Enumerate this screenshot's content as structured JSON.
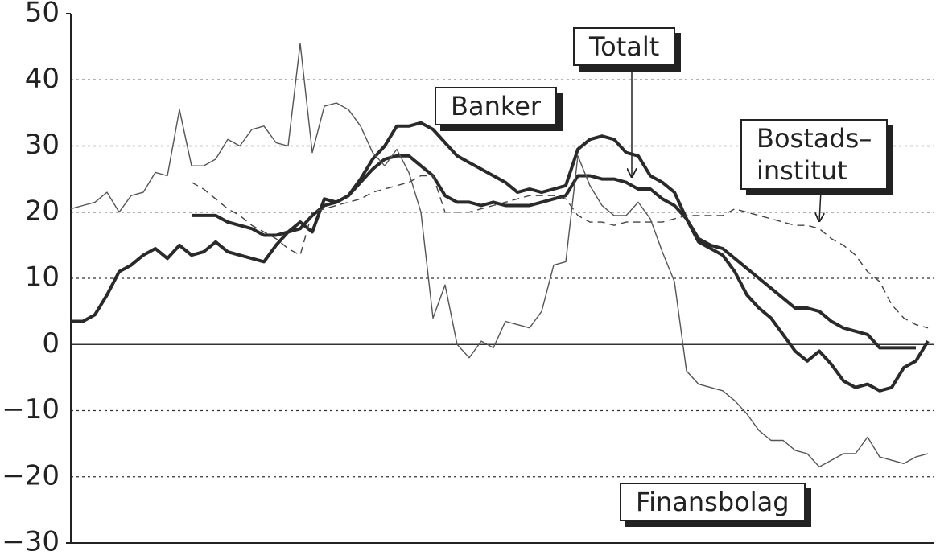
{
  "chart_data": {
    "type": "line",
    "categories": [
      null,
      null,
      null,
      null,
      null,
      null,
      null,
      null,
      null,
      null,
      null,
      null,
      null,
      null,
      null,
      null,
      null,
      null,
      null,
      null,
      null,
      null,
      null,
      null,
      null,
      null,
      null,
      null,
      null,
      null,
      null,
      null,
      null,
      null,
      null,
      null,
      null,
      null,
      null,
      null,
      null,
      null,
      null,
      null,
      null,
      null,
      null,
      null,
      null,
      null,
      null,
      null,
      null,
      null,
      null,
      null,
      null,
      null,
      null,
      null,
      null,
      null,
      null,
      null,
      null,
      null,
      null,
      null,
      null,
      null,
      null,
      null
    ],
    "ylim": [
      -30,
      50
    ],
    "yticks": [
      {
        "value": -30,
        "label": "−30"
      },
      {
        "value": -20,
        "label": "−20"
      },
      {
        "value": -10,
        "label": "−10"
      },
      0,
      10,
      20,
      30,
      40,
      50
    ],
    "grid": true,
    "series": [
      {
        "name": "Banker",
        "color": "#2a2a2a",
        "line_style": "thick",
        "values": [
          3.5,
          3.5,
          4.5,
          7.5,
          11,
          12,
          13.5,
          14.5,
          13,
          15,
          13.5,
          14,
          15.5,
          14,
          13.5,
          13,
          12.5,
          15,
          17,
          18.5,
          17,
          22,
          21.5,
          22.5,
          25,
          28,
          30,
          33,
          33,
          33.5,
          32.5,
          30.5,
          28.5,
          27.5,
          26.5,
          25.5,
          24.5,
          23,
          23.5,
          23,
          23.5,
          24,
          29.5,
          31,
          31.5,
          31,
          29,
          28.5,
          25.5,
          24.5,
          23,
          19,
          15.5,
          14.5,
          13.5,
          11,
          7.5,
          5.5,
          4,
          1.5,
          -1,
          -2.5,
          -1,
          -3,
          -5.5,
          -6.5,
          -6,
          -7,
          -6.5,
          -3.5,
          -2.5,
          0.5
        ]
      },
      {
        "name": "Totalt",
        "color": "#2a2a2a",
        "line_style": "thick",
        "values": [
          null,
          null,
          null,
          null,
          null,
          null,
          null,
          null,
          null,
          null,
          19.5,
          19.5,
          19.5,
          18.5,
          18,
          17.5,
          16.5,
          16.5,
          17,
          17.5,
          19.5,
          21,
          21.5,
          22.5,
          24.5,
          26.5,
          28,
          28.5,
          28.5,
          27,
          25.5,
          22.5,
          21.5,
          21.5,
          21,
          21.5,
          21,
          21,
          21,
          21.5,
          22,
          22.5,
          25.5,
          25.5,
          25,
          25,
          24.5,
          23.5,
          23.5,
          22,
          21,
          19,
          16,
          15,
          14.5,
          13,
          11.5,
          10,
          8.5,
          7,
          5.5,
          5.5,
          5,
          3.5,
          2.5,
          2,
          1.5,
          -0.5,
          -0.5,
          -0.5,
          -0.5,
          null
        ]
      },
      {
        "name": "Bostads–\ninstitut",
        "color": "#444444",
        "line_style": "dashed",
        "values": [
          null,
          null,
          null,
          null,
          null,
          null,
          null,
          null,
          null,
          null,
          24.5,
          23.5,
          22,
          20.5,
          19.5,
          18,
          17,
          16,
          14.5,
          13.5,
          20,
          20.5,
          21,
          21.5,
          22,
          23,
          23.5,
          24,
          24.5,
          25.5,
          25.5,
          20,
          20,
          20,
          20.5,
          21,
          21.5,
          22,
          22.5,
          22.5,
          22.5,
          22,
          19.5,
          18.5,
          18.5,
          18,
          18.5,
          18.5,
          18.5,
          18.5,
          19,
          19.5,
          19.5,
          19.5,
          19.5,
          20.5,
          20,
          19.5,
          19,
          18.5,
          18,
          18,
          17.5,
          16,
          15,
          13.5,
          11,
          9.5,
          6,
          4,
          3,
          2.5
        ]
      },
      {
        "name": "Finansbolag",
        "color": "#555555",
        "line_style": "thin",
        "values": [
          20.5,
          21,
          21.5,
          23,
          20,
          22.5,
          23,
          26,
          25.5,
          35.5,
          27,
          27,
          28,
          31,
          30,
          32.5,
          33,
          30.5,
          30,
          45.5,
          29,
          36,
          36.5,
          35.5,
          33,
          29,
          27,
          29.5,
          26,
          20,
          4,
          9,
          0,
          -2,
          0.5,
          -0.5,
          3.5,
          3,
          2.5,
          5,
          12,
          12.5,
          28.5,
          24,
          21,
          19.5,
          19.5,
          21.5,
          19,
          14,
          9.5,
          -4,
          -6,
          -6.5,
          -7,
          -8.5,
          -10.5,
          -13,
          -14.5,
          -14.5,
          -16,
          -16.5,
          -18.5,
          -17.5,
          -16.5,
          -16.5,
          -14,
          -17,
          -17.5,
          -18,
          -17,
          -16.5
        ]
      }
    ]
  }
}
